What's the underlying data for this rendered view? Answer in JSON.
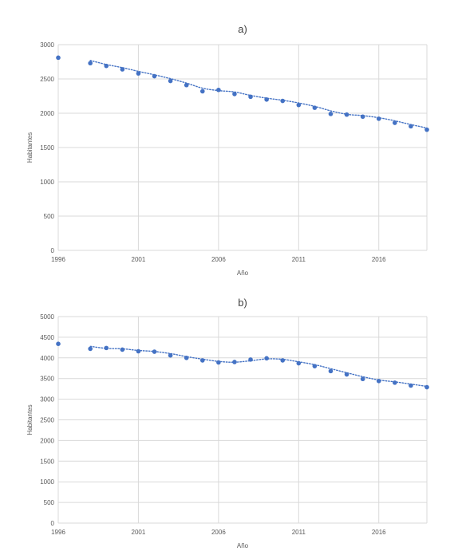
{
  "chart_data": [
    {
      "type": "scatter",
      "title": "a)",
      "xlabel": "Año",
      "ylabel": "Habitantes",
      "xlim": [
        1996,
        2019
      ],
      "ylim": [
        0,
        3000
      ],
      "xticks": [
        1996,
        2001,
        2006,
        2011,
        2016
      ],
      "yticks": [
        0,
        500,
        1000,
        1500,
        2000,
        2500,
        3000
      ],
      "grid": true,
      "marker_color": "#4472C4",
      "trendline": "dotted moving average",
      "series": [
        {
          "x": [
            1996,
            1998,
            1999,
            2000,
            2001,
            2002,
            2003,
            2004,
            2005,
            2006,
            2007,
            2008,
            2009,
            2010,
            2011,
            2012,
            2013,
            2014,
            2015,
            2016,
            2017,
            2018,
            2019
          ],
          "values": [
            2810,
            2730,
            2690,
            2640,
            2580,
            2540,
            2470,
            2410,
            2320,
            2340,
            2280,
            2240,
            2200,
            2180,
            2120,
            2080,
            1990,
            1980,
            1950,
            1920,
            1860,
            1810,
            1760
          ]
        }
      ]
    },
    {
      "type": "scatter",
      "title": "b)",
      "xlabel": "Año",
      "ylabel": "Habitantes",
      "xlim": [
        1996,
        2019
      ],
      "ylim": [
        0,
        5000
      ],
      "xticks": [
        1996,
        2001,
        2006,
        2011,
        2016
      ],
      "yticks": [
        0,
        500,
        1000,
        1500,
        2000,
        2500,
        3000,
        3500,
        4000,
        4500,
        5000
      ],
      "grid": true,
      "marker_color": "#4472C4",
      "trendline": "dotted moving average",
      "series": [
        {
          "x": [
            1996,
            1998,
            1999,
            2000,
            2001,
            2002,
            2003,
            2004,
            2005,
            2006,
            2007,
            2008,
            2009,
            2010,
            2011,
            2012,
            2013,
            2014,
            2015,
            2016,
            2017,
            2018,
            2019
          ],
          "values": [
            4340,
            4220,
            4240,
            4200,
            4160,
            4150,
            4060,
            4000,
            3940,
            3890,
            3900,
            3960,
            3990,
            3940,
            3870,
            3800,
            3680,
            3600,
            3490,
            3440,
            3400,
            3330,
            3290
          ]
        }
      ]
    }
  ]
}
